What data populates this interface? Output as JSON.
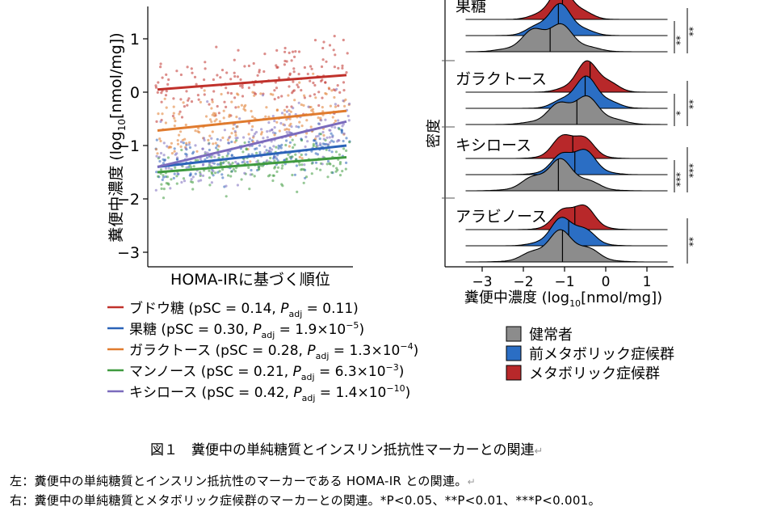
{
  "chart_data": [
    {
      "type": "scatter",
      "title": "",
      "xlabel": "HOMA-IRに基づく順位",
      "ylabel": "糞便中濃度 (log10[nmol/mg])",
      "ylabel_parts": {
        "pre": "糞便中濃度 (log",
        "sub": "10",
        "post": "[nmol/mg])"
      },
      "ylim": [
        -3.3,
        1.6
      ],
      "yticks": [
        1,
        0,
        -1,
        -2,
        -3
      ],
      "ytick_labels": [
        "1",
        "0",
        "−1",
        "−2",
        "−3"
      ],
      "series": [
        {
          "name": "ブドウ糖",
          "pSC": "0.14",
          "p_adj": "0.11",
          "fit_start": 0.05,
          "fit_end": 0.32,
          "mean": 0.2,
          "spread": 0.4,
          "color": "#c0312b"
        },
        {
          "name": "果糖",
          "pSC": "0.30",
          "p_adj": "1.9×10",
          "p_exp": "−5",
          "fit_start": -1.4,
          "fit_end": -1.0,
          "mean": -1.2,
          "spread": 0.3,
          "color": "#2b63b8"
        },
        {
          "name": "ガラクトース",
          "pSC": "0.28",
          "p_adj": "1.3×10",
          "p_exp": "−4",
          "fit_start": -0.72,
          "fit_end": -0.35,
          "mean": -0.5,
          "spread": 0.45,
          "color": "#e07b2e"
        },
        {
          "name": "マンノース",
          "pSC": "0.21",
          "p_adj": "6.3×10",
          "p_exp": "−3",
          "fit_start": -1.5,
          "fit_end": -1.22,
          "mean": -1.35,
          "spread": 0.3,
          "color": "#3f9a3f"
        },
        {
          "name": "キシロース",
          "pSC": "0.42",
          "p_adj": "1.4×10",
          "p_exp": "−10",
          "fit_start": -1.4,
          "fit_end": -0.55,
          "mean": -1.0,
          "spread": 0.45,
          "color": "#7b6bbd"
        }
      ]
    },
    {
      "type": "ridgeline",
      "xlabel": "糞便中濃度 (log10[nmol/mg])",
      "xlabel_parts": {
        "pre": "糞便中濃度 (log",
        "sub": "10",
        "post": "[nmol/mg])"
      },
      "ylabel": "密度",
      "xlim": [
        -3.6,
        1.6
      ],
      "xticks": [
        -3,
        -2,
        -1,
        0,
        1
      ],
      "xtick_labels": [
        "−3",
        "−2",
        "−1",
        "0",
        "1"
      ],
      "groups": [
        {
          "name": "果糖",
          "medians": [
            -1.05,
            -1.15,
            -1.35
          ],
          "sig": [
            "**",
            "**"
          ]
        },
        {
          "name": "ガラクトース",
          "medians": [
            -0.38,
            -0.5,
            -0.7
          ],
          "sig": [
            "*",
            "**"
          ]
        },
        {
          "name": "キシロース",
          "medians": [
            -0.8,
            -0.75,
            -1.15
          ],
          "sig": [
            "***",
            "***"
          ]
        },
        {
          "name": "アラビノース",
          "medians": [
            -0.75,
            -0.9,
            -1.05
          ],
          "sig": [
            "",
            "**"
          ]
        }
      ],
      "legend": [
        {
          "label": "健常者",
          "color": "#8c8c8c"
        },
        {
          "label": "前メタボリック症候群",
          "color": "#2b6ec4"
        },
        {
          "label": "メタボリック症候群",
          "color": "#b8282a"
        }
      ]
    }
  ],
  "figure_caption": "図１　糞便中の単純糖質とインスリン抵抗性マーカーとの関連",
  "return_mark": "↵",
  "notes": [
    "左：糞便中の単純糖質とインスリン抵抗性のマーカーである HOMA-IR との関連。",
    "右：糞便中の単純糖質とメタボリック症候群のマーカーとの関連。*P<0.05、**P<0.01、***P<0.001。"
  ]
}
